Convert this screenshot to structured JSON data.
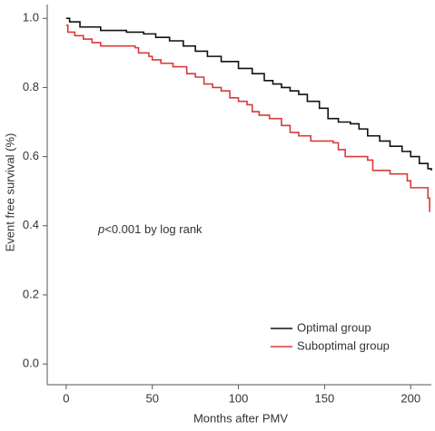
{
  "chart_data": {
    "type": "step",
    "annotation": {
      "italic": "p",
      "text": "<0.001 by log rank"
    },
    "xlabel": "Months after PMV",
    "ylabel": "Event free survival (%)",
    "xlim": [
      -11,
      212
    ],
    "ylim": [
      -0.06,
      1.04
    ],
    "xticks": [
      0,
      50,
      100,
      150,
      200
    ],
    "yticks": [
      {
        "value": 0,
        "label": "0.0"
      },
      0.2,
      0.4,
      0.6,
      0.8,
      {
        "value": 1,
        "label": "1.0"
      }
    ],
    "legend": "lower right",
    "series": [
      {
        "name": "Optimal group",
        "color": "#111111",
        "x": [
          0,
          2,
          8,
          20,
          35,
          45,
          52,
          60,
          68,
          75,
          82,
          90,
          100,
          108,
          115,
          120,
          125,
          130,
          135,
          140,
          147,
          152,
          158,
          165,
          170,
          175,
          182,
          188,
          195,
          200,
          205,
          210,
          212
        ],
        "values": [
          1.0,
          0.99,
          0.975,
          0.965,
          0.96,
          0.955,
          0.945,
          0.935,
          0.92,
          0.905,
          0.89,
          0.875,
          0.855,
          0.84,
          0.82,
          0.81,
          0.8,
          0.79,
          0.78,
          0.76,
          0.74,
          0.71,
          0.7,
          0.695,
          0.68,
          0.66,
          0.645,
          0.63,
          0.615,
          0.6,
          0.58,
          0.565,
          0.56
        ]
      },
      {
        "name": "Suboptimal group",
        "color": "#d93a3a",
        "x": [
          0,
          1,
          5,
          10,
          15,
          20,
          40,
          42,
          48,
          50,
          55,
          62,
          70,
          75,
          80,
          85,
          90,
          95,
          100,
          105,
          108,
          112,
          118,
          125,
          130,
          135,
          142,
          155,
          158,
          162,
          175,
          178,
          188,
          198,
          200,
          210,
          211
        ],
        "values": [
          0.98,
          0.96,
          0.95,
          0.94,
          0.93,
          0.92,
          0.915,
          0.9,
          0.89,
          0.88,
          0.87,
          0.86,
          0.84,
          0.83,
          0.81,
          0.8,
          0.79,
          0.77,
          0.76,
          0.75,
          0.73,
          0.72,
          0.71,
          0.69,
          0.67,
          0.66,
          0.645,
          0.64,
          0.62,
          0.6,
          0.59,
          0.56,
          0.55,
          0.53,
          0.51,
          0.48,
          0.44
        ]
      }
    ]
  }
}
